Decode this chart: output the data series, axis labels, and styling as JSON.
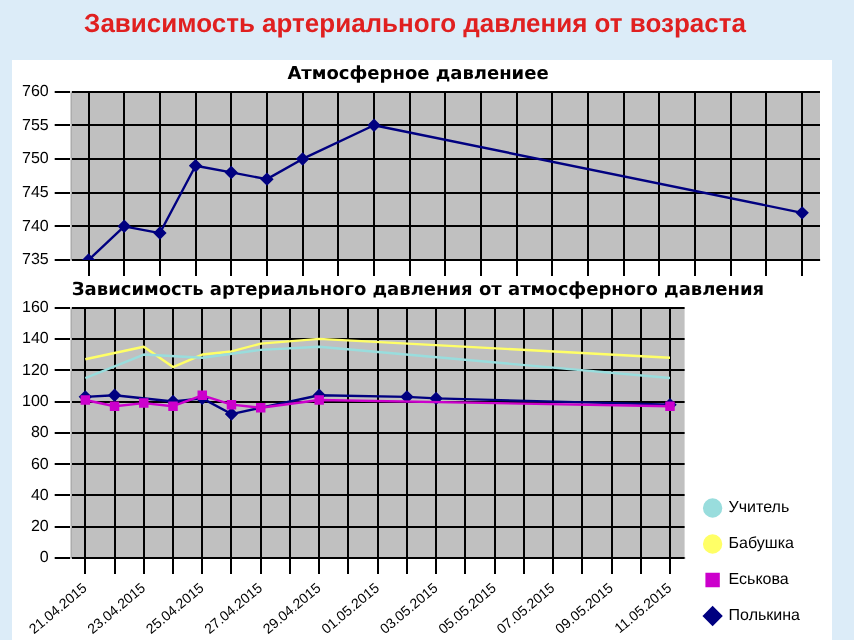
{
  "chart_data": [
    {
      "type": "line",
      "title": "Зависимость артериального давления от возраста",
      "subtitle": "Атмосферное давлениее",
      "categories": [
        null,
        null,
        null,
        null,
        null,
        null,
        null,
        null,
        null,
        null,
        null,
        null,
        null,
        null,
        null,
        null,
        null,
        null,
        null,
        null,
        null
      ],
      "series": [
        {
          "color": "#000080",
          "marker": "diamond",
          "values": [
            735,
            740,
            739,
            749,
            748,
            747,
            750,
            null,
            755,
            null,
            null,
            null,
            null,
            null,
            null,
            null,
            null,
            null,
            null,
            null,
            742
          ]
        }
      ],
      "ylim": [
        735,
        760
      ],
      "yticks": [
        735,
        740,
        745,
        750,
        755,
        760
      ],
      "grid": true,
      "tick_labels": "y",
      "legend": false
    },
    {
      "type": "line",
      "title": "Зависимость артериального давления от атмосферного давления",
      "categories": [
        "21.04.2015",
        null,
        "23.04.2015",
        null,
        "25.04.2015",
        null,
        "27.04.2015",
        null,
        "29.04.2015",
        null,
        "01.05.2015",
        null,
        "03.05.2015",
        null,
        "05.05.2015",
        null,
        "07.05.2015",
        null,
        "09.05.2015",
        null,
        "11.05.2015"
      ],
      "series": [
        {
          "name": "Полькина",
          "color": "#000080",
          "marker": "diamond",
          "values": [
            103,
            104,
            null,
            100,
            102,
            92,
            null,
            null,
            104,
            null,
            null,
            103,
            102,
            null,
            null,
            null,
            null,
            null,
            null,
            null,
            98
          ]
        },
        {
          "name": "Еськова",
          "color": "#cc00cc",
          "marker": "square",
          "values": [
            101,
            97,
            99,
            97,
            104,
            98,
            96,
            null,
            101,
            null,
            null,
            null,
            null,
            null,
            null,
            null,
            null,
            null,
            null,
            null,
            97
          ]
        },
        {
          "name": "Бабушка",
          "color": "#ffff66",
          "marker": "none",
          "values": [
            127,
            131,
            135,
            122,
            130,
            132,
            137,
            null,
            140,
            null,
            null,
            null,
            null,
            null,
            null,
            null,
            null,
            null,
            null,
            null,
            128
          ]
        },
        {
          "name": "Учитель",
          "color": "#99dddd",
          "marker": "none",
          "values": [
            115,
            null,
            130,
            null,
            128,
            null,
            133,
            null,
            135,
            null,
            null,
            null,
            null,
            null,
            null,
            null,
            null,
            null,
            null,
            null,
            115
          ]
        }
      ],
      "ylim": [
        0,
        160
      ],
      "yticks": [
        0,
        20,
        40,
        60,
        80,
        100,
        120,
        140,
        160
      ],
      "grid": true,
      "legend": "bottom right"
    }
  ]
}
